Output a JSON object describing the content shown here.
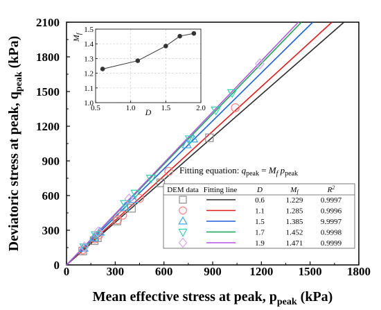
{
  "chart_data": [
    {
      "type": "scatter",
      "xlabel": "Mean effective stress at peak, p",
      "xlabel_sub": "peak",
      "xlabel_unit": " (kPa)",
      "ylabel": "Deviatoric stress at peak, q",
      "ylabel_sub": "peak",
      "ylabel_unit": " (kPa)",
      "xlim": [
        0,
        1800
      ],
      "ylim": [
        0,
        2100
      ],
      "x_ticks": [
        0,
        300,
        600,
        900,
        1200,
        1500,
        1800
      ],
      "y_ticks": [
        0,
        300,
        600,
        900,
        1200,
        1500,
        1800,
        2100
      ],
      "x_tick_labels": [
        "0",
        "300",
        "600",
        "900",
        "1200",
        "1500",
        "1800"
      ],
      "y_tick_labels": [
        "0",
        "300",
        "600",
        "900",
        "1200",
        "1500",
        "1800",
        "2100"
      ],
      "equation": {
        "prefix": "Fitting equation: ",
        "q": "q",
        "q_sub": "peak",
        "eq": " = ",
        "m": "M",
        "m_sub": "f",
        "p": "p",
        "p_sub": "peak"
      },
      "table": {
        "headers": [
          "DEM data",
          "Fitting line",
          "D",
          "M",
          "R"
        ],
        "header_m_sub": "f",
        "header_r_sup": "2",
        "rows": [
          {
            "D": "0.6",
            "Mf": "1.229",
            "R2": "0.9997"
          },
          {
            "D": "1.1",
            "Mf": "1.285",
            "R2": "0.9996"
          },
          {
            "D": "1.5",
            "Mf": "1.385",
            "R2": "9.9997"
          },
          {
            "D": "1.7",
            "Mf": "1.452",
            "R2": "0.9998"
          },
          {
            "D": "1.9",
            "Mf": "1.471",
            "R2": "0.9999"
          }
        ]
      },
      "series": [
        {
          "marker": "square",
          "color": "#8c8c8c",
          "line_color": "#2b2b2b",
          "slope": 1.229,
          "x": [
            100,
            170,
            190,
            310,
            400,
            580,
            880
          ],
          "y": [
            120,
            210,
            235,
            380,
            490,
            710,
            1100
          ]
        },
        {
          "marker": "circle",
          "color": "#ff8080",
          "line_color": "#e0191a",
          "slope": 1.285,
          "x": [
            100,
            175,
            200,
            315,
            345,
            450,
            630,
            1040
          ],
          "y": [
            130,
            225,
            260,
            390,
            430,
            575,
            810,
            1360
          ]
        },
        {
          "marker": "triangle-up",
          "color": "#3ba7f0",
          "line_color": "#1c5fd8",
          "slope": 1.385,
          "x": [
            105,
            170,
            205,
            360,
            410,
            740,
            780
          ],
          "y": [
            145,
            235,
            285,
            500,
            565,
            1040,
            1090
          ]
        },
        {
          "marker": "triangle-down",
          "color": "#35d0b3",
          "line_color": "#17a552",
          "slope": 1.452,
          "x": [
            110,
            180,
            360,
            425,
            520,
            760,
            920,
            1020
          ],
          "y": [
            155,
            260,
            530,
            620,
            750,
            1090,
            1340,
            1490
          ]
        },
        {
          "marker": "diamond",
          "color": "#d9a5e8",
          "line_color": "#b157e0",
          "slope": 1.471,
          "x": [
            110,
            195,
            385,
            1190
          ],
          "y": [
            155,
            285,
            570,
            1740
          ]
        }
      ]
    },
    {
      "type": "line",
      "xlabel": "D",
      "ylabel": "M",
      "ylabel_sub": "f",
      "xlim": [
        0.5,
        2.0
      ],
      "ylim": [
        1.0,
        1.5
      ],
      "x_ticks": [
        0.5,
        1.0,
        1.5,
        2.0
      ],
      "x_tick_labels": [
        "0.5",
        "1.0",
        "1.5",
        "2.0"
      ],
      "y_ticks": [
        1.0,
        1.1,
        1.2,
        1.3,
        1.4,
        1.5
      ],
      "y_tick_labels": [
        "1.0",
        "1.1",
        "1.2",
        "1.3",
        "1.4",
        "1.5"
      ],
      "grid": true,
      "x": [
        0.6,
        1.1,
        1.5,
        1.7,
        1.9
      ],
      "y": [
        1.229,
        1.285,
        1.385,
        1.452,
        1.471
      ]
    }
  ]
}
